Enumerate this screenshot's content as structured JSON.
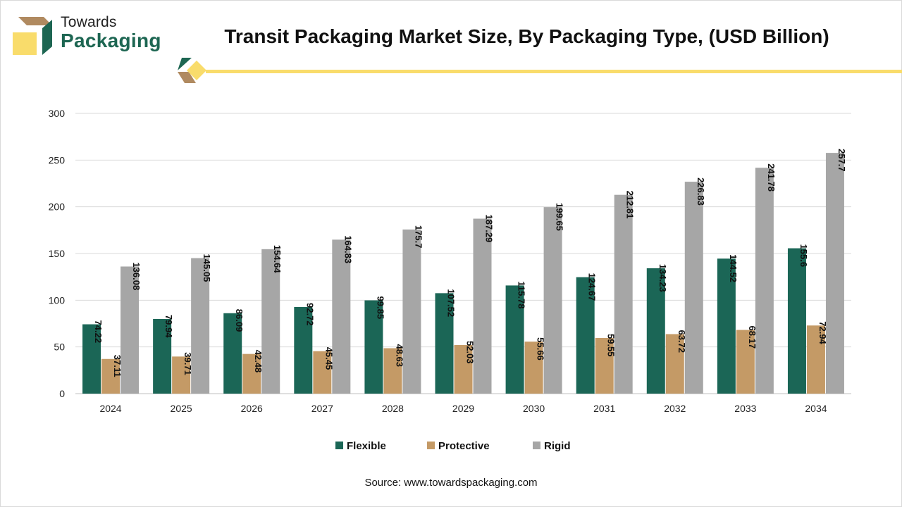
{
  "brand": {
    "line1": "Towards",
    "line2": "Packaging"
  },
  "colors": {
    "flexible": "#1b6656",
    "protective": "#c49a66",
    "rigid": "#a6a6a6",
    "accent_yellow": "#f9dc6b",
    "accent_green": "#1d6652",
    "accent_tan": "#b08a60"
  },
  "source": "Source: www.towardspackaging.com",
  "chart_data": {
    "type": "bar",
    "title": "Transit Packaging Market Size, By Packaging Type, (USD Billion)",
    "xlabel": "",
    "ylabel": "",
    "ylim": [
      0,
      300
    ],
    "yticks": [
      0,
      50,
      100,
      150,
      200,
      250,
      300
    ],
    "grid": true,
    "legend_position": "bottom",
    "categories": [
      "2024",
      "2025",
      "2026",
      "2027",
      "2028",
      "2029",
      "2030",
      "2031",
      "2032",
      "2033",
      "2034"
    ],
    "series": [
      {
        "name": "Flexible",
        "values": [
          74.22,
          79.94,
          86.09,
          92.72,
          99.85,
          107.52,
          115.78,
          124.67,
          134.23,
          144.52,
          155.6
        ],
        "labels": [
          "74.22",
          "79.94",
          "86.09",
          "92.72",
          "99.85",
          "107.52",
          "115.78",
          "124.67",
          "134.23",
          "144.52",
          "155.6"
        ]
      },
      {
        "name": "Protective",
        "values": [
          37.11,
          39.71,
          42.48,
          45.45,
          48.63,
          52.03,
          55.66,
          59.55,
          63.72,
          68.17,
          72.94
        ],
        "labels": [
          "37.11",
          "39.71",
          "42.48",
          "45.45",
          "48.63",
          "52.03",
          "55.66",
          "59.55",
          "63.72",
          "68.17",
          "72.94"
        ]
      },
      {
        "name": "Rigid",
        "values": [
          136.08,
          145.05,
          154.64,
          164.83,
          175.7,
          187.29,
          199.65,
          212.81,
          226.83,
          241.78,
          257.7
        ],
        "labels": [
          "136.08",
          "145.05",
          "154.64",
          "164.83",
          "175.7",
          "187.29",
          "199.65",
          "212.81",
          "226.83",
          "241.78",
          "257.7"
        ]
      }
    ]
  }
}
